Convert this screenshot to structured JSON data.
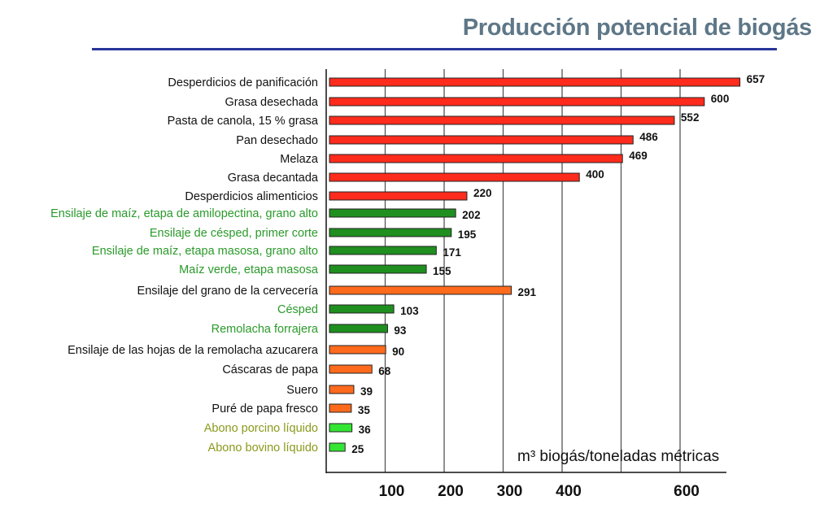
{
  "chart_data": {
    "type": "bar",
    "orientation": "horizontal",
    "title": "Producción potencial de biogás",
    "xlabel": "m³ biogás/toneladas métricas",
    "ylabel": "",
    "xlim": [
      0,
      700
    ],
    "xticks": [
      100,
      200,
      300,
      400,
      500,
      600
    ],
    "xtick_labels": [
      "100",
      "200",
      "300",
      "400",
      "",
      "600"
    ],
    "grid": true,
    "categories": [
      "Desperdicios de panificación",
      "Grasa desechada",
      "Pasta de canola, 15 % grasa",
      "Pan desechado",
      "Melaza",
      "Grasa decantada",
      "Desperdicios alimenticios",
      "Ensilaje de maíz, etapa de amilopectina, grano alto",
      "Ensilaje de césped, primer corte",
      "Ensilaje de maíz, etapa masosa, grano alto",
      "Maíz verde, etapa masosa",
      "Ensilaje del grano de la cervecería",
      "Césped",
      "Remolacha forrajera",
      "Ensilaje de las hojas de la remolacha azucarera",
      "Cáscaras de papa",
      "Suero",
      "Puré de papa fresco",
      "Abono porcino líquido",
      "Abono bovino líquido"
    ],
    "values": [
      657,
      600,
      552,
      486,
      469,
      400,
      220,
      202,
      195,
      171,
      155,
      291,
      103,
      93,
      90,
      68,
      39,
      35,
      36,
      25
    ],
    "groups": [
      "red",
      "red",
      "red",
      "red",
      "red",
      "red",
      "red",
      "green",
      "green",
      "green",
      "green",
      "orange",
      "green",
      "green",
      "orange",
      "orange",
      "orange",
      "orange",
      "lime",
      "lime"
    ],
    "colors": {
      "red": {
        "bar": "#ff2b1c",
        "label": "#111111"
      },
      "green": {
        "bar": "#1f8f1f",
        "label": "#2a9a2a"
      },
      "orange": {
        "bar": "#ff6a1c",
        "label": "#111111"
      },
      "lime": {
        "bar": "#33e633",
        "label": "#8a9a1c"
      }
    }
  }
}
